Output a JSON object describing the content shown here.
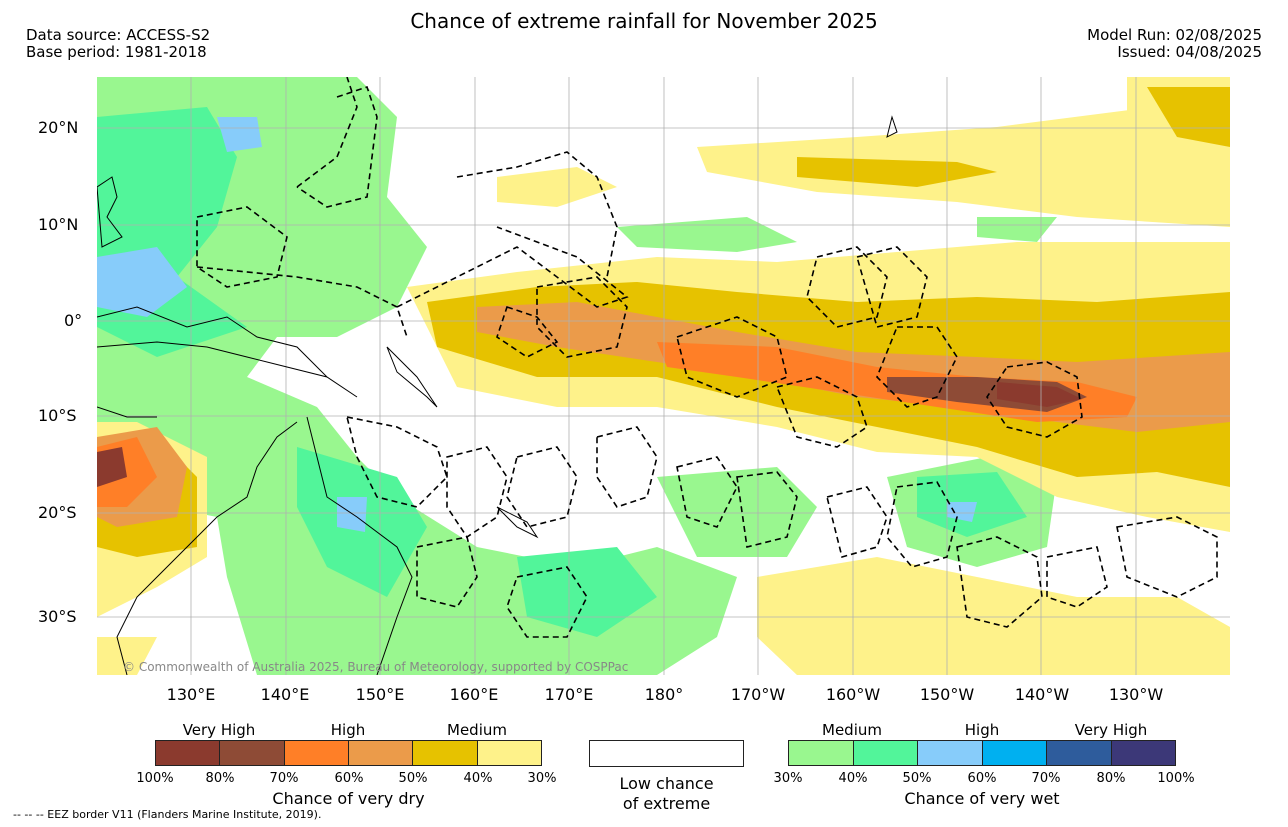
{
  "title": "Chance of extreme rainfall for November 2025",
  "source": {
    "line1": "Data source: ACCESS-S2",
    "line2": "Base period: 1981-2018"
  },
  "run": {
    "line1": "Model Run: 02/08/2025",
    "line2": "Issued: 04/08/2025"
  },
  "copyright": "© Commonwealth of Australia 2025, Bureau of Meteorology, supported by COSPPac",
  "eez_note": "--  --  -- EEZ border V11 (Flanders Marine Institute, 2019).",
  "lat_labels": [
    "20°N",
    "10°N",
    "0°",
    "10°S",
    "20°S",
    "30°S"
  ],
  "lon_labels": [
    "130°E",
    "140°E",
    "150°E",
    "160°E",
    "170°E",
    "180°",
    "170°W",
    "160°W",
    "150°W",
    "140°W",
    "130°W"
  ],
  "dry": {
    "headers": [
      "Very High",
      "High",
      "Medium"
    ],
    "colors": [
      "#8b3a2e",
      "#8e4b36",
      "#ff7f27",
      "#eb9b4a",
      "#e6c200",
      "#fef28a"
    ],
    "ticks": [
      "100%",
      "80%",
      "70%",
      "60%",
      "50%",
      "40%",
      "30%"
    ],
    "caption": "Chance of very dry"
  },
  "low": {
    "line1": "Low chance",
    "line2": "of extreme"
  },
  "wet": {
    "headers": [
      "Medium",
      "High",
      "Very High"
    ],
    "colors": [
      "#99f78f",
      "#52f59a",
      "#87ccfa",
      "#00b0f0",
      "#2e5c9c",
      "#3c3878"
    ],
    "ticks": [
      "30%",
      "40%",
      "50%",
      "60%",
      "70%",
      "80%",
      "100%"
    ],
    "caption": "Chance of very wet"
  },
  "map_colors": {
    "ocean": "#ffffff",
    "land_line": "#000000",
    "grid": "#b0b0b0"
  }
}
